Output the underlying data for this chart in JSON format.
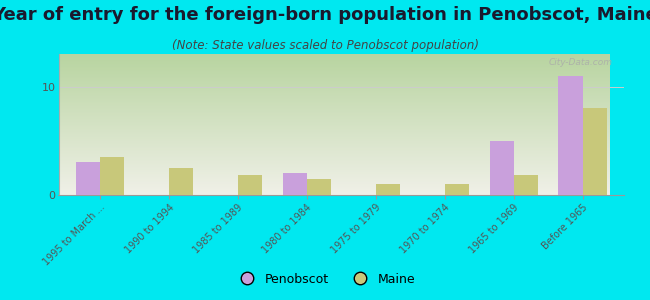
{
  "title": "Year of entry for the foreign-born population in Penobscot, Maine",
  "subtitle": "(Note: State values scaled to Penobscot population)",
  "categories": [
    "1995 to March ...",
    "1990 to 1994",
    "1985 to 1989",
    "1980 to 1984",
    "1975 to 1979",
    "1970 to 1974",
    "1965 to 1969",
    "Before 1965"
  ],
  "penobscot_values": [
    3,
    0,
    0,
    2,
    0,
    0,
    5,
    11
  ],
  "maine_values": [
    3.5,
    2.5,
    1.8,
    1.5,
    1.0,
    1.0,
    1.8,
    8.0
  ],
  "penobscot_color": "#c9a0dc",
  "maine_color": "#c8c87a",
  "plot_bg_top": "#b8d4a0",
  "plot_bg_bottom": "#f0f0e8",
  "ylim": [
    0,
    13
  ],
  "yticks": [
    0,
    10
  ],
  "bar_width": 0.35,
  "fig_bg": "#00e8f0",
  "title_fontsize": 13,
  "subtitle_fontsize": 8.5,
  "tick_label_fontsize": 7,
  "watermark": "City-Data.com"
}
